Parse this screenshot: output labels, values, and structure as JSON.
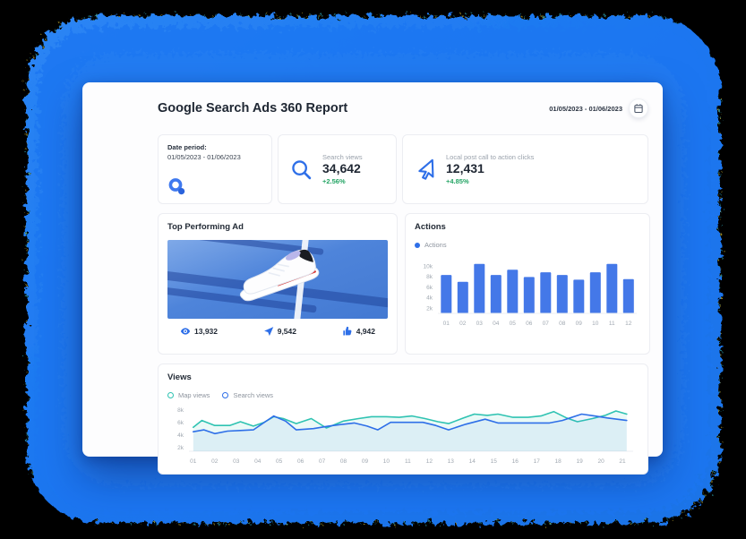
{
  "report": {
    "title": "Google Search Ads 360 Report",
    "date_range": "01/05/2023 - 01/06/2023",
    "summary_cards": [
      {
        "label": "Date period:",
        "value": "01/05/2023 - 01/06/2023",
        "icon": "magnifier-logo-icon"
      },
      {
        "label": "Search views",
        "value": "34,642",
        "delta": "+2.56%",
        "icon": "search-icon"
      },
      {
        "label": "Local post call to action clicks",
        "value": "12,431",
        "delta": "+4.85%",
        "icon": "cursor-arrow-icon"
      }
    ],
    "top_ad": {
      "title": "Top Performing Ad",
      "image_alt": "white sneaker floating over blue tennis court with white line",
      "stats": [
        {
          "icon": "eye-icon",
          "value": "13,932"
        },
        {
          "icon": "trend-arrow-icon",
          "value": "9,542"
        },
        {
          "icon": "thumb-up-icon",
          "value": "4,942"
        }
      ]
    }
  },
  "colors": {
    "accent_blue": "#2e6fe8",
    "bar_blue": "#4478e8",
    "teal": "#2fc3b2",
    "green": "#23a464",
    "blob_blue": "#1b77f2",
    "background": "#000000"
  },
  "chart_data": [
    {
      "id": "actions",
      "type": "bar",
      "title": "Actions",
      "legend": [
        {
          "label": "Actions",
          "color": "#2e6fe8"
        }
      ],
      "categories": [
        "01",
        "02",
        "03",
        "04",
        "05",
        "06",
        "07",
        "08",
        "09",
        "10",
        "11",
        "12"
      ],
      "values": [
        8.3,
        7.0,
        10.4,
        8.3,
        9.3,
        7.9,
        8.8,
        8.3,
        7.4,
        8.8,
        10.4,
        7.5
      ],
      "unit": "thousands",
      "yticks": [
        2,
        4,
        6,
        8,
        10
      ],
      "ytick_labels": [
        "2k",
        "4k",
        "6k",
        "8k",
        "10k"
      ],
      "ylim": [
        1,
        11.2
      ],
      "bar_color": "#4478e8",
      "xlabel": "",
      "ylabel": ""
    },
    {
      "id": "views",
      "type": "line",
      "title": "Views",
      "legend": [
        {
          "label": "Map views",
          "color": "#2fc3b2"
        },
        {
          "label": "Search views",
          "color": "#2e6fe8"
        }
      ],
      "xtick_labels": [
        "01",
        "02",
        "03",
        "04",
        "05",
        "06",
        "07",
        "08",
        "09",
        "10",
        "11",
        "12",
        "13",
        "14",
        "15",
        "16",
        "17",
        "18",
        "19",
        "20",
        "21"
      ],
      "yticks": [
        2,
        4,
        6,
        8
      ],
      "ytick_labels": [
        "2k",
        "4k",
        "6k",
        "8k"
      ],
      "ylim": [
        1.4,
        8.8
      ],
      "xlim": [
        0.8,
        21.5
      ],
      "unit": "thousands",
      "series": [
        {
          "name": "Map views",
          "color": "#2fc3b2",
          "fill": "rgba(47,195,178,0.10)",
          "points": [
            [
              1,
              5.2
            ],
            [
              1.4,
              6.3
            ],
            [
              2,
              5.5
            ],
            [
              2.7,
              5.5
            ],
            [
              3.2,
              6.1
            ],
            [
              3.8,
              5.4
            ],
            [
              4.3,
              6.0
            ],
            [
              4.75,
              6.9
            ],
            [
              5.2,
              6.6
            ],
            [
              5.8,
              5.8
            ],
            [
              6.5,
              6.6
            ],
            [
              7.2,
              5.1
            ],
            [
              8,
              6.2
            ],
            [
              8.7,
              6.6
            ],
            [
              9.3,
              6.9
            ],
            [
              10,
              6.9
            ],
            [
              10.6,
              6.8
            ],
            [
              11.2,
              7.0
            ],
            [
              11.8,
              6.6
            ],
            [
              12.4,
              6.1
            ],
            [
              12.9,
              5.8
            ],
            [
              13.6,
              6.7
            ],
            [
              14.1,
              7.3
            ],
            [
              14.7,
              7.1
            ],
            [
              15.2,
              7.3
            ],
            [
              15.9,
              6.8
            ],
            [
              16.6,
              6.8
            ],
            [
              17.2,
              7.0
            ],
            [
              17.8,
              7.7
            ],
            [
              18.4,
              6.7
            ],
            [
              18.9,
              6.1
            ],
            [
              19.6,
              6.6
            ],
            [
              20.2,
              7.1
            ],
            [
              20.7,
              7.8
            ],
            [
              21.2,
              7.3
            ]
          ]
        },
        {
          "name": "Search views",
          "color": "#2e6fe8",
          "fill": "rgba(46,111,232,0.07)",
          "points": [
            [
              1,
              4.5
            ],
            [
              1.5,
              4.8
            ],
            [
              2,
              4.2
            ],
            [
              2.6,
              4.6
            ],
            [
              3.2,
              4.7
            ],
            [
              3.8,
              4.8
            ],
            [
              4.75,
              7.0
            ],
            [
              5.3,
              6.2
            ],
            [
              5.8,
              4.8
            ],
            [
              6.6,
              5.0
            ],
            [
              7.3,
              5.4
            ],
            [
              8,
              5.7
            ],
            [
              8.5,
              5.9
            ],
            [
              9.1,
              5.4
            ],
            [
              9.6,
              4.8
            ],
            [
              10.2,
              6.0
            ],
            [
              11,
              6.0
            ],
            [
              11.7,
              6.0
            ],
            [
              12.3,
              5.5
            ],
            [
              12.9,
              4.8
            ],
            [
              13.7,
              5.7
            ],
            [
              14.6,
              6.5
            ],
            [
              15.2,
              5.9
            ],
            [
              16,
              5.9
            ],
            [
              16.8,
              5.9
            ],
            [
              17.6,
              5.9
            ],
            [
              18.2,
              6.3
            ],
            [
              19.1,
              7.3
            ],
            [
              19.7,
              7.0
            ],
            [
              20.3,
              6.7
            ],
            [
              21.2,
              6.3
            ]
          ]
        }
      ]
    }
  ]
}
